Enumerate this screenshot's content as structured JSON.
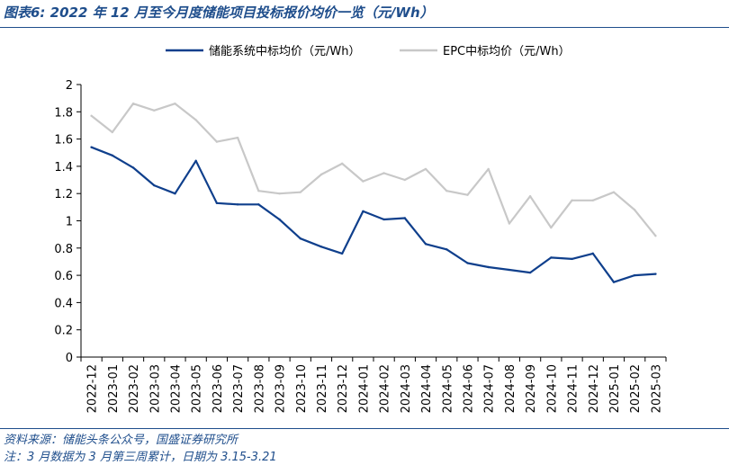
{
  "header": {
    "title": "图表6:  2022 年 12 月至今月度储能项目投标报价均价一览（元/Wh）"
  },
  "footer": {
    "source": "资料来源：储能头条公众号，国盛证券研究所",
    "note": "注：3 月数据为 3 月第三周累计，日期为 3.15-3.21"
  },
  "chart_data": {
    "type": "line",
    "title": "",
    "xlabel": "",
    "ylabel": "",
    "ylim": [
      0,
      2
    ],
    "yticks": [
      "0",
      "0.2",
      "0.4",
      "0.6",
      "0.8",
      "1",
      "1.2",
      "1.4",
      "1.6",
      "1.8",
      "2"
    ],
    "grid": false,
    "legend_position": "top",
    "categories": [
      "2022-12",
      "2023-01",
      "2023-02",
      "2023-03",
      "2023-04",
      "2023-05",
      "2023-06",
      "2023-07",
      "2023-08",
      "2023-09",
      "2023-10",
      "2023-11",
      "2023-12",
      "2024-01",
      "2024-02",
      "2024-03",
      "2024-04",
      "2024-05",
      "2024-06",
      "2024-07",
      "2024-08",
      "2024-09",
      "2024-10",
      "2024-11",
      "2024-12",
      "2025-01",
      "2025-02",
      "2025-03"
    ],
    "series": [
      {
        "name": "储能系统中标均价（元/Wh）",
        "color": "#0f3f8c",
        "values": [
          1.54,
          1.48,
          1.39,
          1.26,
          1.2,
          1.44,
          1.13,
          1.12,
          1.12,
          1.01,
          0.87,
          0.81,
          0.76,
          1.07,
          1.01,
          1.02,
          0.83,
          0.79,
          0.69,
          0.66,
          0.64,
          0.62,
          0.73,
          0.72,
          0.76,
          0.55,
          0.6,
          0.61
        ]
      },
      {
        "name": "EPC中标均价（元/Wh）",
        "color": "#c8c8c8",
        "values": [
          1.77,
          1.65,
          1.86,
          1.81,
          1.86,
          1.74,
          1.58,
          1.61,
          1.22,
          1.2,
          1.21,
          1.34,
          1.42,
          1.29,
          1.35,
          1.3,
          1.38,
          1.22,
          1.19,
          1.38,
          0.98,
          1.18,
          0.95,
          1.15,
          1.15,
          1.21,
          1.08,
          0.89
        ]
      }
    ]
  }
}
